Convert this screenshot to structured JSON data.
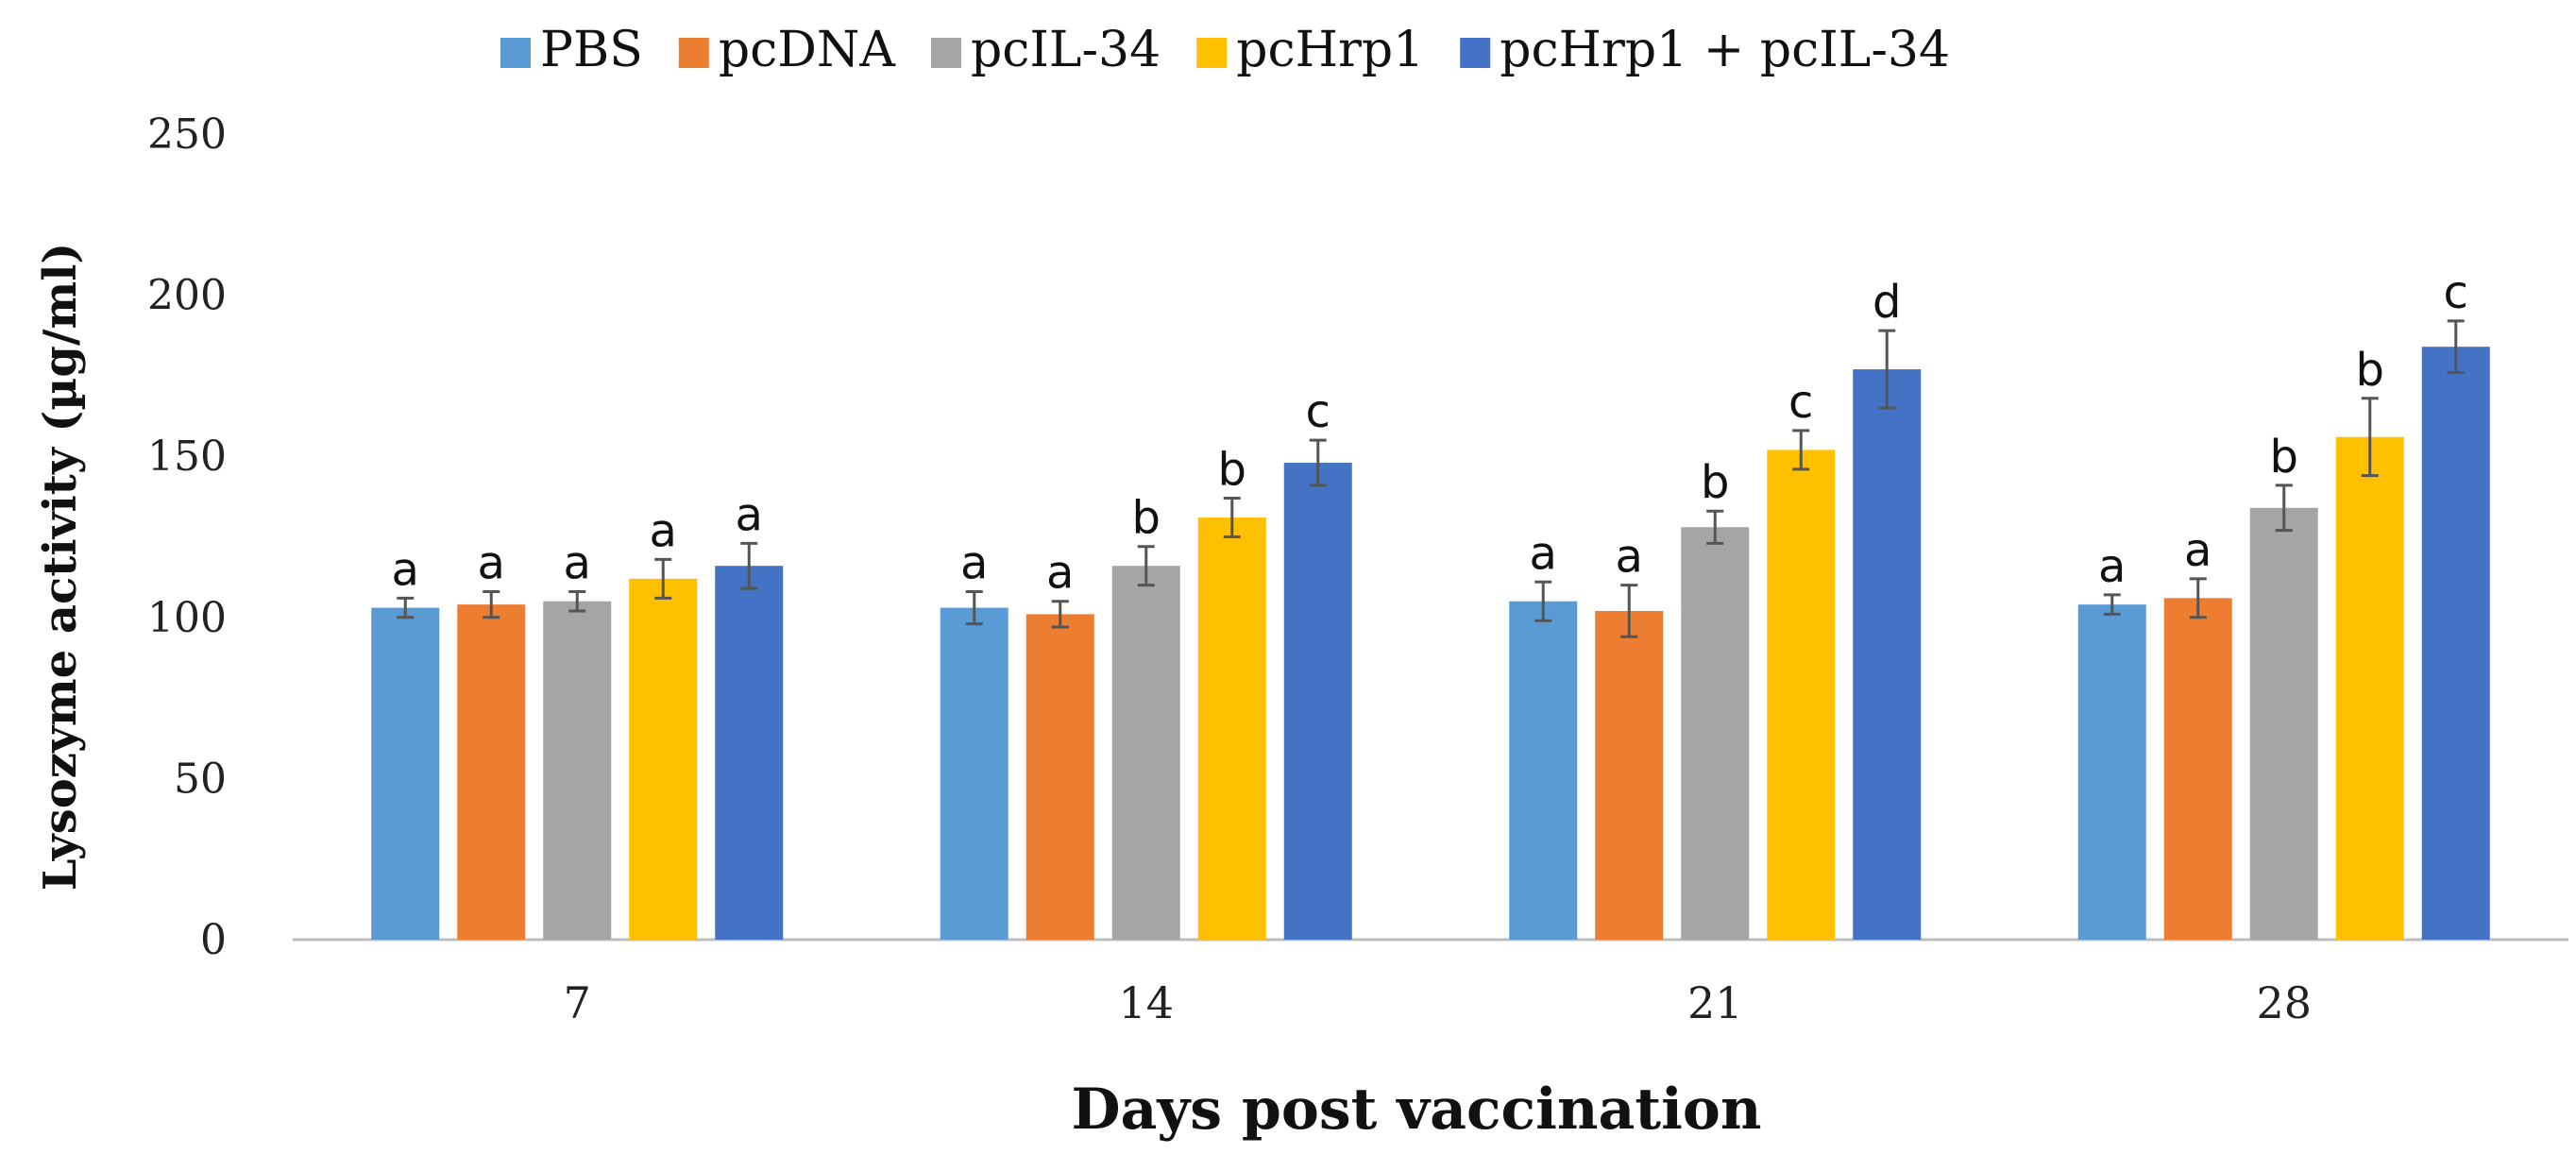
{
  "chart_data": {
    "type": "bar",
    "title": "",
    "xlabel": "Days post vaccination",
    "ylabel": "Lysozyme activity (µg/ml)",
    "ylim": [
      0,
      250
    ],
    "yticks": [
      0,
      50,
      100,
      150,
      200,
      250
    ],
    "categories": [
      "7",
      "14",
      "21",
      "28"
    ],
    "legend_position": "top",
    "grid": false,
    "series": [
      {
        "name": "PBS",
        "color": "#5b9bd5",
        "values": [
          103,
          103,
          105,
          104
        ],
        "errors": [
          3,
          5,
          6,
          3
        ],
        "letters": [
          "a",
          "a",
          "a",
          "a"
        ]
      },
      {
        "name": "pcDNA",
        "color": "#ed7d31",
        "values": [
          104,
          101,
          102,
          106
        ],
        "errors": [
          4,
          4,
          8,
          6
        ],
        "letters": [
          "a",
          "a",
          "a",
          "a"
        ]
      },
      {
        "name": "pcIL-34",
        "color": "#a5a5a5",
        "values": [
          105,
          116,
          128,
          134
        ],
        "errors": [
          3,
          6,
          5,
          7
        ],
        "letters": [
          "a",
          "b",
          "b",
          "b"
        ]
      },
      {
        "name": "pcHrp1",
        "color": "#ffc000",
        "values": [
          112,
          131,
          152,
          156
        ],
        "errors": [
          6,
          6,
          6,
          12
        ],
        "letters": [
          "a",
          "b",
          "c",
          "b"
        ]
      },
      {
        "name": "pcHrp1 + pcIL-34",
        "color": "#4472c4",
        "values": [
          116,
          148,
          177,
          184
        ],
        "errors": [
          7,
          7,
          12,
          8
        ],
        "letters": [
          "a",
          "c",
          "d",
          "c"
        ]
      }
    ]
  }
}
